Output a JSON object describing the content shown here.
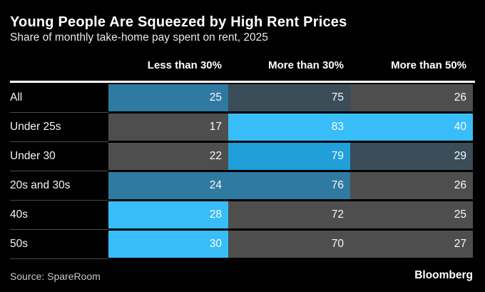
{
  "chart": {
    "title": "Young People Are Squeezed by High Rent Prices",
    "subtitle": "Share of monthly take-home pay spent on rent, 2025",
    "source": "Source: SpareRoom",
    "brand": "Bloomberg"
  },
  "palette": {
    "gray": "#4e4e4e",
    "darkslate": "#3a4d59",
    "steel": "#2e7aa1",
    "bright": "#219fd9",
    "cyan": "#38bdf8"
  },
  "table": {
    "columns": [
      "Less than 30%",
      "More than 30%",
      "More than 50%"
    ],
    "rows": [
      {
        "label": "All",
        "cells": [
          {
            "value": "25",
            "color": "steel"
          },
          {
            "value": "75",
            "color": "darkslate"
          },
          {
            "value": "26",
            "color": "gray"
          }
        ]
      },
      {
        "label": "Under 25s",
        "cells": [
          {
            "value": "17",
            "color": "gray"
          },
          {
            "value": "83",
            "color": "cyan"
          },
          {
            "value": "40",
            "color": "cyan"
          }
        ]
      },
      {
        "label": "Under 30",
        "cells": [
          {
            "value": "22",
            "color": "gray"
          },
          {
            "value": "79",
            "color": "bright"
          },
          {
            "value": "29",
            "color": "darkslate"
          }
        ]
      },
      {
        "label": "20s and 30s",
        "cells": [
          {
            "value": "24",
            "color": "steel"
          },
          {
            "value": "76",
            "color": "steel"
          },
          {
            "value": "26",
            "color": "gray"
          }
        ]
      },
      {
        "label": "40s",
        "cells": [
          {
            "value": "28",
            "color": "cyan"
          },
          {
            "value": "72",
            "color": "gray"
          },
          {
            "value": "25",
            "color": "gray"
          }
        ]
      },
      {
        "label": "50s",
        "cells": [
          {
            "value": "30",
            "color": "cyan"
          },
          {
            "value": "70",
            "color": "gray"
          },
          {
            "value": "27",
            "color": "gray"
          }
        ]
      }
    ]
  },
  "chart_data": {
    "type": "heatmap",
    "title": "Young People Are Squeezed by High Rent Prices",
    "subtitle": "Share of monthly take-home pay spent on rent, 2025",
    "categories": [
      "All",
      "Under 25s",
      "Under 30",
      "20s and 30s",
      "40s",
      "50s"
    ],
    "series": [
      {
        "name": "Less than 30%",
        "values": [
          25,
          17,
          22,
          24,
          28,
          30
        ]
      },
      {
        "name": "More than 30%",
        "values": [
          75,
          83,
          79,
          76,
          72,
          70
        ]
      },
      {
        "name": "More than 50%",
        "values": [
          26,
          40,
          29,
          26,
          25,
          27
        ]
      }
    ],
    "value_unit": "% of respondents",
    "legend_position": "none",
    "grid": false,
    "source": "Source: SpareRoom"
  }
}
